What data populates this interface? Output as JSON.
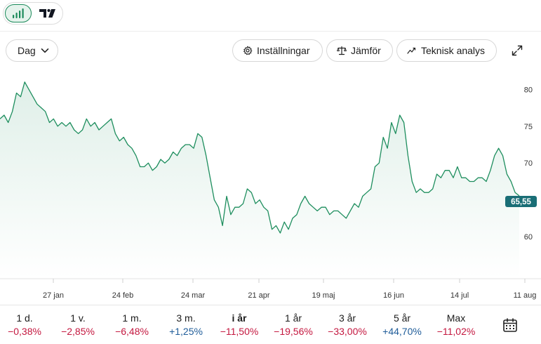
{
  "toggle": {
    "chart_icon": "bar-chart-icon",
    "tv_icon": "tradingview-logo-icon"
  },
  "toolbar": {
    "interval_label": "Dag",
    "settings_label": "Inställningar",
    "compare_label": "Jämför",
    "technical_label": "Teknisk analys"
  },
  "chart_data": {
    "type": "area",
    "title": "",
    "xlabel": "",
    "ylabel": "",
    "ylim": [
      54.3,
      82.6
    ],
    "yticks": [
      60,
      65,
      70,
      75,
      80
    ],
    "xticks": [
      "27 jan",
      "24 feb",
      "24 mar",
      "21 apr",
      "19 maj",
      "16 jun",
      "14 jul",
      "11 aug"
    ],
    "last_value": "65,55",
    "line_color": "#1e8e5e",
    "label_color": "#1a6e76",
    "grid": false,
    "series": [
      {
        "values": [
          76,
          76.5,
          75.5,
          77,
          79.5,
          79,
          81,
          80,
          79,
          78,
          77.5,
          77,
          75.5,
          76,
          75,
          75.5,
          75,
          75.5,
          74.5,
          74,
          74.5,
          76,
          75,
          75.5,
          74.5,
          75,
          75.5,
          76,
          74,
          73,
          73.5,
          72.5,
          72,
          71,
          69.5,
          69.5,
          70,
          69,
          69.5,
          70.5,
          70,
          70.5,
          71.5,
          71,
          72,
          72.5,
          72.5,
          72,
          74,
          73.5,
          71,
          68,
          65,
          64,
          61.5,
          65.5,
          63,
          64,
          64,
          64.5,
          66.5,
          66,
          64.5,
          65,
          64,
          63.5,
          61,
          61.5,
          60.5,
          62,
          61,
          62.5,
          63,
          64.5,
          65.5,
          64.5,
          64,
          63.5,
          64,
          64,
          63,
          63.5,
          63.5,
          63,
          62.5,
          63.5,
          64.5,
          64,
          65.5,
          66,
          66.5,
          69.5,
          70,
          73.5,
          72,
          75.5,
          74,
          76.5,
          75.5,
          71,
          67.5,
          66,
          66.5,
          66,
          66,
          66.5,
          68.5,
          68,
          69,
          69,
          68,
          69.5,
          68,
          68,
          67.5,
          67.5,
          68,
          68,
          67.5,
          69,
          71,
          72,
          71,
          68.5,
          67.5,
          66,
          65.55
        ]
      }
    ]
  },
  "periods": [
    {
      "label": "1 d.",
      "value": "−0,38%",
      "sign": "neg"
    },
    {
      "label": "1 v.",
      "value": "−2,85%",
      "sign": "neg"
    },
    {
      "label": "1 m.",
      "value": "−6,48%",
      "sign": "neg"
    },
    {
      "label": "3 m.",
      "value": "+1,25%",
      "sign": "pos"
    },
    {
      "label": "i år",
      "value": "−11,50%",
      "sign": "neg",
      "active": true
    },
    {
      "label": "1 år",
      "value": "−19,56%",
      "sign": "neg"
    },
    {
      "label": "3 år",
      "value": "−33,00%",
      "sign": "neg"
    },
    {
      "label": "5 år",
      "value": "+44,70%",
      "sign": "pos"
    },
    {
      "label": "Max",
      "value": "−11,02%",
      "sign": "neg"
    }
  ],
  "calendar_icon": "calendar-icon"
}
